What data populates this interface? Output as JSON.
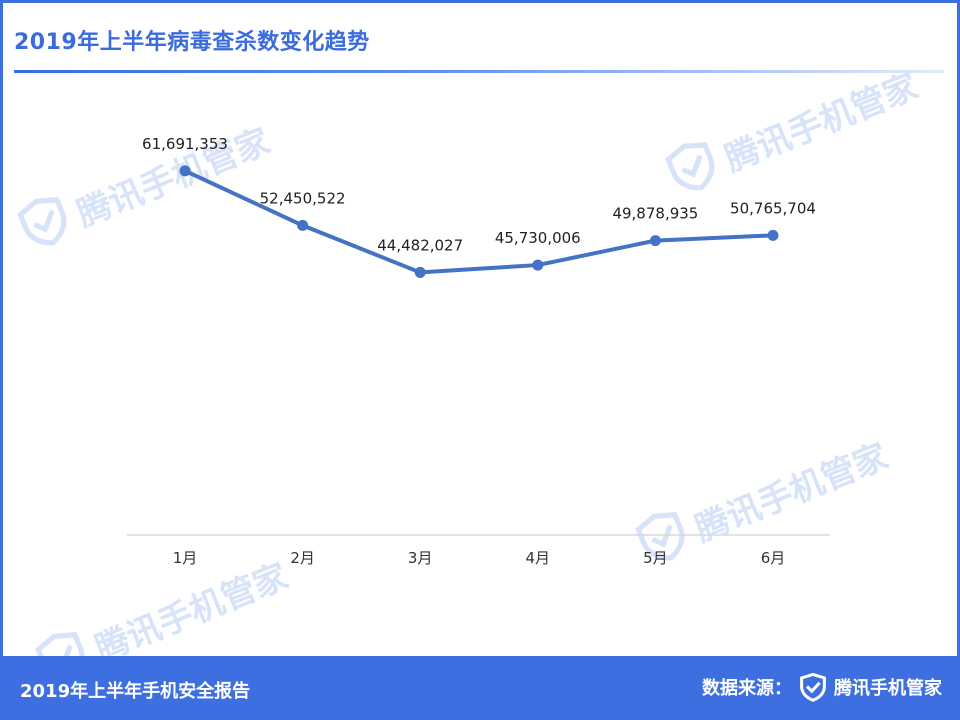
{
  "header": {
    "title": "2019年上半年病毒查杀数变化趋势"
  },
  "watermark": {
    "text": "腾讯手机管家",
    "icon": "shield-check-icon"
  },
  "chart_data": {
    "type": "line",
    "categories": [
      "1月",
      "2月",
      "3月",
      "4月",
      "5月",
      "6月"
    ],
    "values": [
      61691353,
      52450522,
      44482027,
      45730006,
      49878935,
      50765704
    ],
    "data_labels": [
      "61,691,353",
      "52,450,522",
      "44,482,027",
      "45,730,006",
      "49,878,935",
      "50,765,704"
    ],
    "title": "2019年上半年病毒查杀数变化趋势",
    "xlabel": "",
    "ylabel": "",
    "ylim": [
      0,
      72000000
    ],
    "grid": false,
    "legend": "none",
    "line_color": "#4472c4"
  },
  "footer": {
    "title": "2019年上半年手机安全报告",
    "source_label": "数据来源：",
    "brand": "腾讯手机管家",
    "brand_icon": "shield-check-icon"
  },
  "colors": {
    "accent": "#3e6fe0",
    "watermark": "#d7e3f8"
  }
}
